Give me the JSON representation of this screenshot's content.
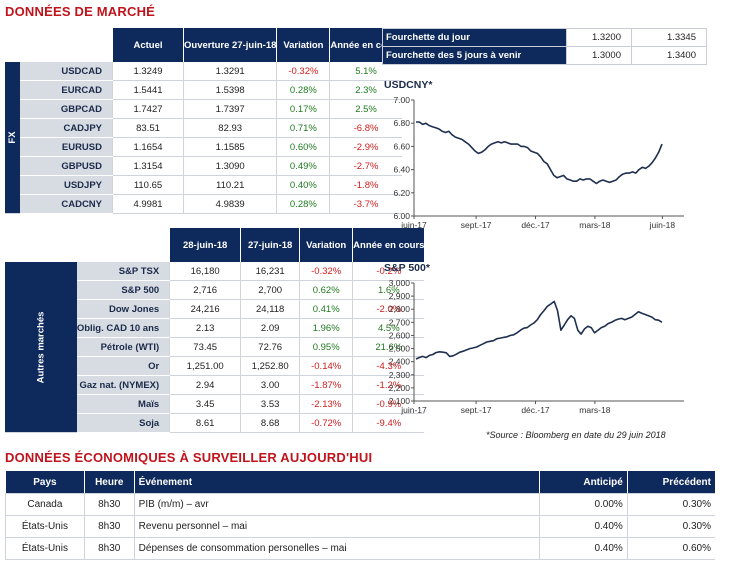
{
  "market_title": "DONNÉES DE MARCHÉ",
  "fx": {
    "side_label": "FX",
    "headers": [
      "Actuel",
      "Ouverture 27-juin-18",
      "Variation",
      "Année en cours"
    ],
    "rows": [
      {
        "name": "USDCAD",
        "actuel": "1.3249",
        "ouverture": "1.3291",
        "variation": "-0.32%",
        "annee": "5.1%"
      },
      {
        "name": "EURCAD",
        "actuel": "1.5441",
        "ouverture": "1.5398",
        "variation": "0.28%",
        "annee": "2.3%"
      },
      {
        "name": "GBPCAD",
        "actuel": "1.7427",
        "ouverture": "1.7397",
        "variation": "0.17%",
        "annee": "2.5%"
      },
      {
        "name": "CADJPY",
        "actuel": "83.51",
        "ouverture": "82.93",
        "variation": "0.71%",
        "annee": "-6.8%"
      },
      {
        "name": "EURUSD",
        "actuel": "1.1654",
        "ouverture": "1.1585",
        "variation": "0.60%",
        "annee": "-2.9%"
      },
      {
        "name": "GBPUSD",
        "actuel": "1.3154",
        "ouverture": "1.3090",
        "variation": "0.49%",
        "annee": "-2.7%"
      },
      {
        "name": "USDJPY",
        "actuel": "110.65",
        "ouverture": "110.21",
        "variation": "0.40%",
        "annee": "-1.8%"
      },
      {
        "name": "CADCNY",
        "actuel": "4.9981",
        "ouverture": "4.9839",
        "variation": "0.28%",
        "annee": "-3.7%"
      }
    ]
  },
  "other": {
    "side_label": "Autres marchés",
    "headers": [
      "28-juin-18",
      "27-juin-18",
      "Variation",
      "Année en cours"
    ],
    "rows": [
      {
        "name": "S&P TSX",
        "actuel": "16,180",
        "ouverture": "16,231",
        "variation": "-0.32%",
        "annee": "-0.2%"
      },
      {
        "name": "S&P 500",
        "actuel": "2,716",
        "ouverture": "2,700",
        "variation": "0.62%",
        "annee": "1.6%"
      },
      {
        "name": "Dow Jones",
        "actuel": "24,216",
        "ouverture": "24,118",
        "variation": "0.41%",
        "annee": "-2.0%"
      },
      {
        "name": "Oblig. CAD 10 ans",
        "actuel": "2.13",
        "ouverture": "2.09",
        "variation": "1.96%",
        "annee": "4.5%"
      },
      {
        "name": "Pétrole (WTI)",
        "actuel": "73.45",
        "ouverture": "72.76",
        "variation": "0.95%",
        "annee": "21.6%"
      },
      {
        "name": "Or",
        "actuel": "1,251.00",
        "ouverture": "1,252.80",
        "variation": "-0.14%",
        "annee": "-4.3%"
      },
      {
        "name": "Gaz nat. (NYMEX)",
        "actuel": "2.94",
        "ouverture": "3.00",
        "variation": "-1.87%",
        "annee": "-1.2%"
      },
      {
        "name": "Maïs",
        "actuel": "3.45",
        "ouverture": "3.53",
        "variation": "-2.13%",
        "annee": "-0.9%"
      },
      {
        "name": "Soja",
        "actuel": "8.61",
        "ouverture": "8.68",
        "variation": "-0.72%",
        "annee": "-9.4%"
      }
    ]
  },
  "fourchette": [
    {
      "label": "Fourchette du jour",
      "low": "1.3200",
      "high": "1.3345"
    },
    {
      "label": "Fourchette des 5 jours à venir",
      "low": "1.3000",
      "high": "1.3400"
    }
  ],
  "chart_data": [
    {
      "type": "line",
      "title": "USDCNY*",
      "ylim": [
        6.0,
        7.0
      ],
      "yticks": [
        "6.00",
        "6.20",
        "6.40",
        "6.60",
        "6.80",
        "7.00"
      ],
      "xticks": [
        "juin-17",
        "sept.-17",
        "déc.-17",
        "mars-18",
        "juin-18"
      ],
      "grid": false,
      "series": [
        {
          "x_range": [
            "2017-06-01",
            "2018-06-28"
          ],
          "values": [
            6.81,
            6.81,
            6.79,
            6.8,
            6.78,
            6.77,
            6.76,
            6.75,
            6.73,
            6.72,
            6.73,
            6.7,
            6.68,
            6.67,
            6.66,
            6.64,
            6.62,
            6.59,
            6.56,
            6.54,
            6.55,
            6.57,
            6.6,
            6.62,
            6.63,
            6.64,
            6.63,
            6.64,
            6.63,
            6.62,
            6.62,
            6.62,
            6.6,
            6.6,
            6.59,
            6.56,
            6.55,
            6.54,
            6.51,
            6.47,
            6.45,
            6.4,
            6.35,
            6.33,
            6.34,
            6.35,
            6.32,
            6.31,
            6.3,
            6.3,
            6.32,
            6.31,
            6.32,
            6.32,
            6.3,
            6.28,
            6.3,
            6.31,
            6.3,
            6.29,
            6.3,
            6.31,
            6.34,
            6.36,
            6.37,
            6.37,
            6.38,
            6.37,
            6.4,
            6.42,
            6.41,
            6.43,
            6.46,
            6.5,
            6.55,
            6.62
          ]
        }
      ]
    },
    {
      "type": "line",
      "title": "S&P 500*",
      "ylim": [
        2100,
        3000
      ],
      "yticks": [
        "2,100",
        "2,200",
        "2,300",
        "2,400",
        "2,500",
        "2,600",
        "2,700",
        "2,800",
        "2,900",
        "3,000"
      ],
      "xticks": [
        "juin-17",
        "sept.-17",
        "déc.-17",
        "mars-18"
      ],
      "grid": false,
      "series": [
        {
          "x_range": [
            "2017-06-01",
            "2018-06-28"
          ],
          "values": [
            2420,
            2432,
            2440,
            2431,
            2448,
            2455,
            2470,
            2475,
            2472,
            2468,
            2440,
            2445,
            2457,
            2472,
            2480,
            2490,
            2500,
            2505,
            2512,
            2525,
            2537,
            2550,
            2555,
            2560,
            2575,
            2580,
            2585,
            2590,
            2600,
            2605,
            2620,
            2640,
            2655,
            2660,
            2680,
            2695,
            2720,
            2760,
            2790,
            2822,
            2840,
            2860,
            2790,
            2640,
            2680,
            2720,
            2750,
            2730,
            2640,
            2610,
            2650,
            2670,
            2660,
            2620,
            2640,
            2660,
            2670,
            2690,
            2700,
            2715,
            2725,
            2730,
            2720,
            2730,
            2740,
            2760,
            2780,
            2770,
            2760,
            2750,
            2740,
            2720,
            2716,
            2700
          ]
        }
      ]
    }
  ],
  "footnote": "*Source : Bloomberg en date du  29 juin 2018",
  "eco": {
    "title": "DONNÉES ÉCONOMIQUES À SURVEILLER AUJOURD'HUI",
    "headers": [
      "Pays",
      "Heure",
      "Événement",
      "Anticipé",
      "Précédent"
    ],
    "rows": [
      {
        "pays": "Canada",
        "heure": "8h30",
        "evenement": "PIB (m/m) – avr",
        "anticipe": "0.00%",
        "precedent": "0.30%"
      },
      {
        "pays": "États-Unis",
        "heure": "8h30",
        "evenement": "Revenu personnel – mai",
        "anticipe": "0.40%",
        "precedent": "0.30%"
      },
      {
        "pays": "États-Unis",
        "heure": "8h30",
        "evenement": "Dépenses de consommation personelles – mai",
        "anticipe": "0.40%",
        "precedent": "0.60%"
      }
    ]
  }
}
